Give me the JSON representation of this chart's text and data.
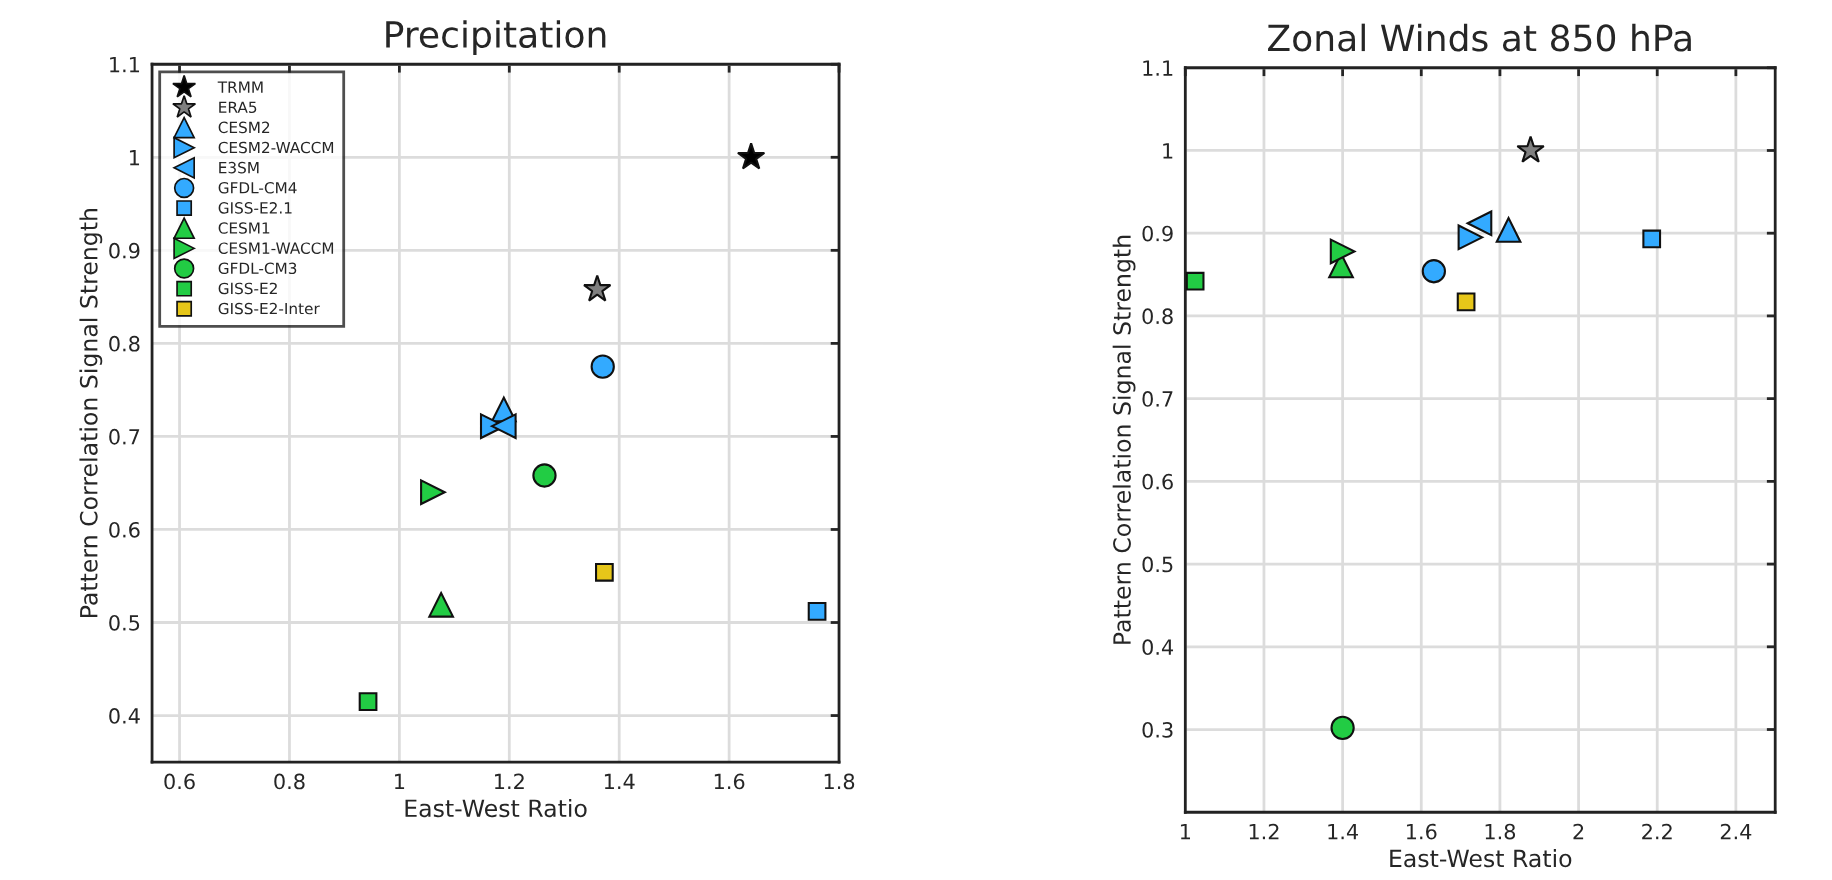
{
  "chart_data": [
    {
      "type": "scatter",
      "title": "Precipitation",
      "xlabel": "East-West Ratio",
      "ylabel": "Pattern Correlation Signal Strength",
      "xlim": [
        0.55,
        1.8
      ],
      "xticks": [
        0.6,
        0.8,
        1,
        1.2,
        1.4,
        1.6,
        1.8
      ],
      "ylim": [
        0.35,
        1.1
      ],
      "yticks": [
        0.4,
        0.5,
        0.6,
        0.7,
        0.8,
        0.9,
        1,
        1.1
      ],
      "grid": true,
      "legend": "top left",
      "series": [
        {
          "name": "TRMM",
          "color": "#000000",
          "marker": "star",
          "x": [
            1.64
          ],
          "values": [
            1.0
          ]
        },
        {
          "name": "ERA5",
          "color": "#808080",
          "marker": "star",
          "x": [
            1.36
          ],
          "values": [
            0.858
          ]
        },
        {
          "name": "CESM2",
          "color": "#33aaff",
          "marker": "triangle",
          "x": [
            1.19
          ],
          "values": [
            0.729
          ]
        },
        {
          "name": "CESM2-WACCM",
          "color": "#33aaff",
          "marker": "triangle_right",
          "x": [
            1.17
          ],
          "values": [
            0.711
          ]
        },
        {
          "name": "E3SM",
          "color": "#33aaff",
          "marker": "triangle_left",
          "x": [
            1.19
          ],
          "values": [
            0.711
          ]
        },
        {
          "name": "GFDL-CM4",
          "color": "#33aaff",
          "marker": "circle",
          "x": [
            1.37
          ],
          "values": [
            0.775
          ]
        },
        {
          "name": "GISS-E2.1",
          "color": "#33aaff",
          "marker": "square",
          "x": [
            1.76
          ],
          "values": [
            0.512
          ]
        },
        {
          "name": "CESM1",
          "color": "#22cc44",
          "marker": "triangle",
          "x": [
            1.076
          ],
          "values": [
            0.519
          ]
        },
        {
          "name": "CESM1-WACCM",
          "color": "#22cc44",
          "marker": "triangle_right",
          "x": [
            1.061
          ],
          "values": [
            0.64
          ]
        },
        {
          "name": "GFDL-CM3",
          "color": "#22cc44",
          "marker": "circle",
          "x": [
            1.264
          ],
          "values": [
            0.658
          ]
        },
        {
          "name": "GISS-E2",
          "color": "#22cc44",
          "marker": "square",
          "x": [
            0.943
          ],
          "values": [
            0.415
          ]
        },
        {
          "name": "GISS-E2-Inter",
          "color": "#e6c619",
          "marker": "square",
          "x": [
            1.373
          ],
          "values": [
            0.554
          ]
        }
      ]
    },
    {
      "type": "scatter",
      "title": "Zonal Winds at 850 hPa",
      "xlabel": "East-West Ratio",
      "ylabel": "Pattern Correlation Signal Strength",
      "xlim": [
        1,
        2.5
      ],
      "xticks": [
        1,
        1.2,
        1.4,
        1.6,
        1.8,
        2,
        2.2,
        2.4
      ],
      "ylim": [
        0.2,
        1.1
      ],
      "yticks": [
        0.3,
        0.4,
        0.5,
        0.6,
        0.7,
        0.8,
        0.9,
        1,
        1.1
      ],
      "grid": true,
      "series": [
        {
          "color": "#808080",
          "marker": "star",
          "x": [
            1.878
          ],
          "values": [
            1.0
          ]
        },
        {
          "color": "#33aaff",
          "marker": "triangle",
          "x": [
            1.822
          ],
          "values": [
            0.904
          ]
        },
        {
          "color": "#33aaff",
          "marker": "triangle_right",
          "x": [
            1.725
          ],
          "values": [
            0.895
          ]
        },
        {
          "color": "#33aaff",
          "marker": "triangle_left",
          "x": [
            1.748
          ],
          "values": [
            0.912
          ]
        },
        {
          "color": "#33aaff",
          "marker": "circle",
          "x": [
            1.632
          ],
          "values": [
            0.854
          ]
        },
        {
          "color": "#33aaff",
          "marker": "square",
          "x": [
            2.186
          ],
          "values": [
            0.893
          ]
        },
        {
          "color": "#22cc44",
          "marker": "triangle",
          "x": [
            1.396
          ],
          "values": [
            0.861
          ]
        },
        {
          "color": "#22cc44",
          "marker": "triangle_right",
          "x": [
            1.4
          ],
          "values": [
            0.878
          ]
        },
        {
          "color": "#22cc44",
          "marker": "circle",
          "x": [
            1.4
          ],
          "values": [
            0.302
          ]
        },
        {
          "color": "#22cc44",
          "marker": "square",
          "x": [
            1.025
          ],
          "values": [
            0.842
          ]
        },
        {
          "color": "#e6c619",
          "marker": "square",
          "x": [
            1.714
          ],
          "values": [
            0.817
          ]
        }
      ]
    }
  ]
}
